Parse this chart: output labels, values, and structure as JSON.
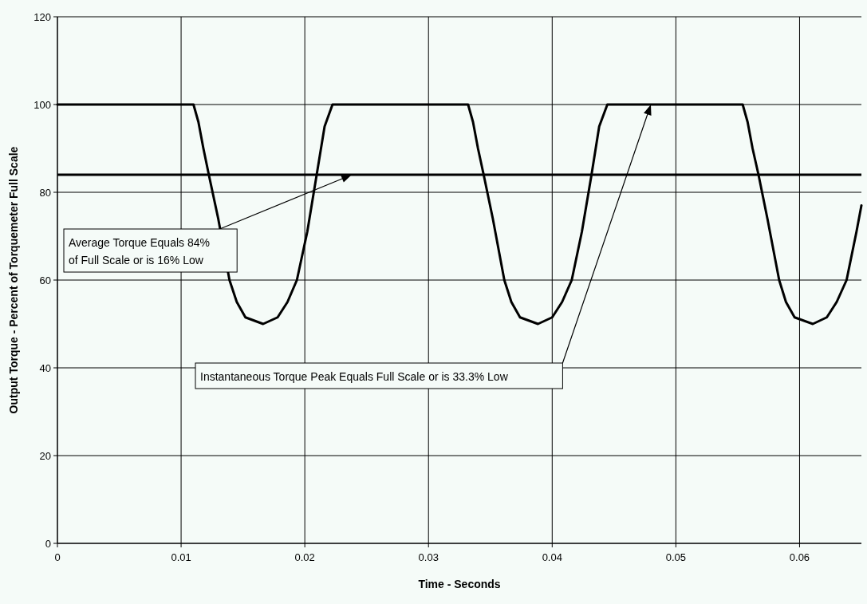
{
  "chart_data": {
    "type": "line",
    "xlabel": "Time - Seconds",
    "ylabel": "Output Torque - Percent of Torquemeter Full Scale",
    "x": [
      0,
      0.011,
      0.0114,
      0.0118,
      0.01224,
      0.013,
      0.01391,
      0.0145,
      0.0152,
      0.01663,
      0.0178,
      0.0186,
      0.01936,
      0.0202,
      0.02096,
      0.0216,
      0.02224,
      0.0332,
      0.0336,
      0.034,
      0.03446,
      0.0352,
      0.03613,
      0.0367,
      0.0374,
      0.03885,
      0.04,
      0.0408,
      0.04158,
      0.0424,
      0.04318,
      0.0438,
      0.04446,
      0.0554,
      0.0558,
      0.0562,
      0.05668,
      0.0574,
      0.05835,
      0.0589,
      0.0596,
      0.06107,
      0.0622,
      0.063,
      0.0638,
      0.0646,
      0.065
    ],
    "series": [
      {
        "color": "#000000",
        "values": [
          100,
          100,
          96,
          90,
          84,
          74,
          60,
          55,
          51.5,
          50,
          51.5,
          55,
          60,
          71,
          84,
          95,
          100,
          100,
          96,
          90,
          84,
          74,
          60,
          55,
          51.5,
          50,
          51.5,
          55,
          60,
          71,
          84,
          95,
          100,
          100,
          96,
          90,
          84,
          74,
          60,
          55,
          51.5,
          50,
          51.5,
          55,
          60,
          71,
          77
        ]
      }
    ],
    "xlim": [
      0,
      0.065
    ],
    "xticks": [
      0,
      0.01,
      0.02,
      0.03,
      0.04,
      0.05,
      0.06
    ],
    "ylim": [
      0,
      120
    ],
    "yticks": [
      0,
      20,
      40,
      60,
      80,
      100,
      120
    ],
    "grid": true,
    "marker": "none",
    "line_style": "solid",
    "ref_lines": [
      {
        "axis": "y",
        "value": 84,
        "color": "#000000"
      }
    ],
    "annotations": [
      "Average Torque Equals 84%\nof Full Scale or is 16% Low",
      "Instantaneous Torque Peak Equals Full Scale or is 33.3% Low"
    ]
  }
}
